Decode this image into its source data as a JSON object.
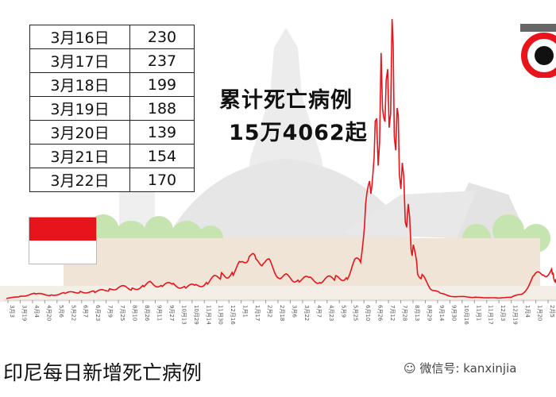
{
  "table": {
    "rows": [
      {
        "date": "3月16日",
        "value": "230"
      },
      {
        "date": "3月17日",
        "value": "237"
      },
      {
        "date": "3月18日",
        "value": "199"
      },
      {
        "date": "3月19日",
        "value": "188"
      },
      {
        "date": "3月20日",
        "value": "139"
      },
      {
        "date": "3月21日",
        "value": "154"
      },
      {
        "date": "3月22日",
        "value": "170"
      }
    ]
  },
  "annotation": {
    "line1": "累计死亡病例",
    "line2": "15万4062起"
  },
  "caption": "印尼每日新增死亡病例",
  "watermark": "微信号: kanxinjia",
  "colors": {
    "line": "#e8141b",
    "flag_red": "#e8141b",
    "flag_white": "#ffffff",
    "background_art": "#e9e9e9",
    "trees": "#bfe0a8"
  },
  "chart_data": {
    "type": "line",
    "title": "印尼每日新增死亡病例",
    "xlabel": "",
    "ylabel": "",
    "grid": false,
    "ylim": [
      0,
      2100
    ],
    "x_start": "2020-03-01",
    "x_end": "2022-03-22",
    "tick_labels": [
      "3月3",
      "3月19",
      "4月4",
      "4月20",
      "5月6",
      "5月22",
      "6月7",
      "6月23",
      "7月9",
      "7月25",
      "8月10",
      "8月26",
      "9月11",
      "9月27",
      "10月13",
      "10月29",
      "11月14",
      "11月30",
      "12月16",
      "1月1",
      "1月17",
      "2月2",
      "2月18",
      "3月6",
      "3月22",
      "4月7",
      "4月23",
      "5月9",
      "5月25",
      "6月10",
      "6月26",
      "7月12",
      "7月28",
      "8月13",
      "8月29",
      "9月14",
      "9月30",
      "10月16",
      "11月1",
      "11月17",
      "12月3",
      "12月19",
      "1月4",
      "1月20",
      "2月5"
    ],
    "series": [
      {
        "values": [
          [
            "2020-03-01",
            0
          ],
          [
            "2020-03-20",
            20
          ],
          [
            "2020-04-10",
            40
          ],
          [
            "2020-05-01",
            30
          ],
          [
            "2020-05-20",
            45
          ],
          [
            "2020-06-10",
            60
          ],
          [
            "2020-06-30",
            55
          ],
          [
            "2020-07-20",
            80
          ],
          [
            "2020-08-01",
            100
          ],
          [
            "2020-08-20",
            85
          ],
          [
            "2020-09-05",
            110
          ],
          [
            "2020-09-15",
            130
          ],
          [
            "2020-09-30",
            115
          ],
          [
            "2020-10-15",
            120
          ],
          [
            "2020-11-01",
            100
          ],
          [
            "2020-11-15",
            110
          ],
          [
            "2020-12-01",
            140
          ],
          [
            "2020-12-20",
            200
          ],
          [
            "2021-01-05",
            230
          ],
          [
            "2021-01-15",
            280
          ],
          [
            "2021-01-27",
            420
          ],
          [
            "2021-02-05",
            300
          ],
          [
            "2021-02-15",
            350
          ],
          [
            "2021-02-25",
            280
          ],
          [
            "2021-03-10",
            200
          ],
          [
            "2021-03-20",
            180
          ],
          [
            "2021-04-05",
            170
          ],
          [
            "2021-04-20",
            160
          ],
          [
            "2021-05-05",
            160
          ],
          [
            "2021-05-25",
            170
          ],
          [
            "2021-06-10",
            200
          ],
          [
            "2021-06-20",
            290
          ],
          [
            "2021-06-28",
            380
          ],
          [
            "2021-07-05",
            700
          ],
          [
            "2021-07-12",
            1100
          ],
          [
            "2021-07-18",
            1300
          ],
          [
            "2021-07-22",
            1400
          ],
          [
            "2021-07-26",
            1800
          ],
          [
            "2021-07-28",
            2000
          ],
          [
            "2021-08-02",
            1600
          ],
          [
            "2021-08-06",
            1800
          ],
          [
            "2021-08-10",
            2050
          ],
          [
            "2021-08-13",
            1700
          ],
          [
            "2021-08-17",
            1400
          ],
          [
            "2021-08-20",
            1300
          ],
          [
            "2021-08-24",
            1000
          ],
          [
            "2021-08-28",
            800
          ],
          [
            "2021-09-01",
            700
          ],
          [
            "2021-09-05",
            500
          ],
          [
            "2021-09-08",
            400
          ],
          [
            "2021-09-14",
            250
          ],
          [
            "2021-09-20",
            180
          ],
          [
            "2021-10-01",
            100
          ],
          [
            "2021-10-15",
            40
          ],
          [
            "2021-11-01",
            20
          ],
          [
            "2021-12-01",
            10
          ],
          [
            "2022-01-01",
            5
          ],
          [
            "2022-01-20",
            10
          ],
          [
            "2022-02-05",
            50
          ],
          [
            "2022-02-20",
            180
          ],
          [
            "2022-03-05",
            230
          ],
          [
            "2022-03-16",
            230
          ],
          [
            "2022-03-17",
            237
          ],
          [
            "2022-03-18",
            199
          ],
          [
            "2022-03-19",
            188
          ],
          [
            "2022-03-20",
            139
          ],
          [
            "2022-03-21",
            154
          ],
          [
            "2022-03-22",
            170
          ]
        ]
      }
    ]
  }
}
